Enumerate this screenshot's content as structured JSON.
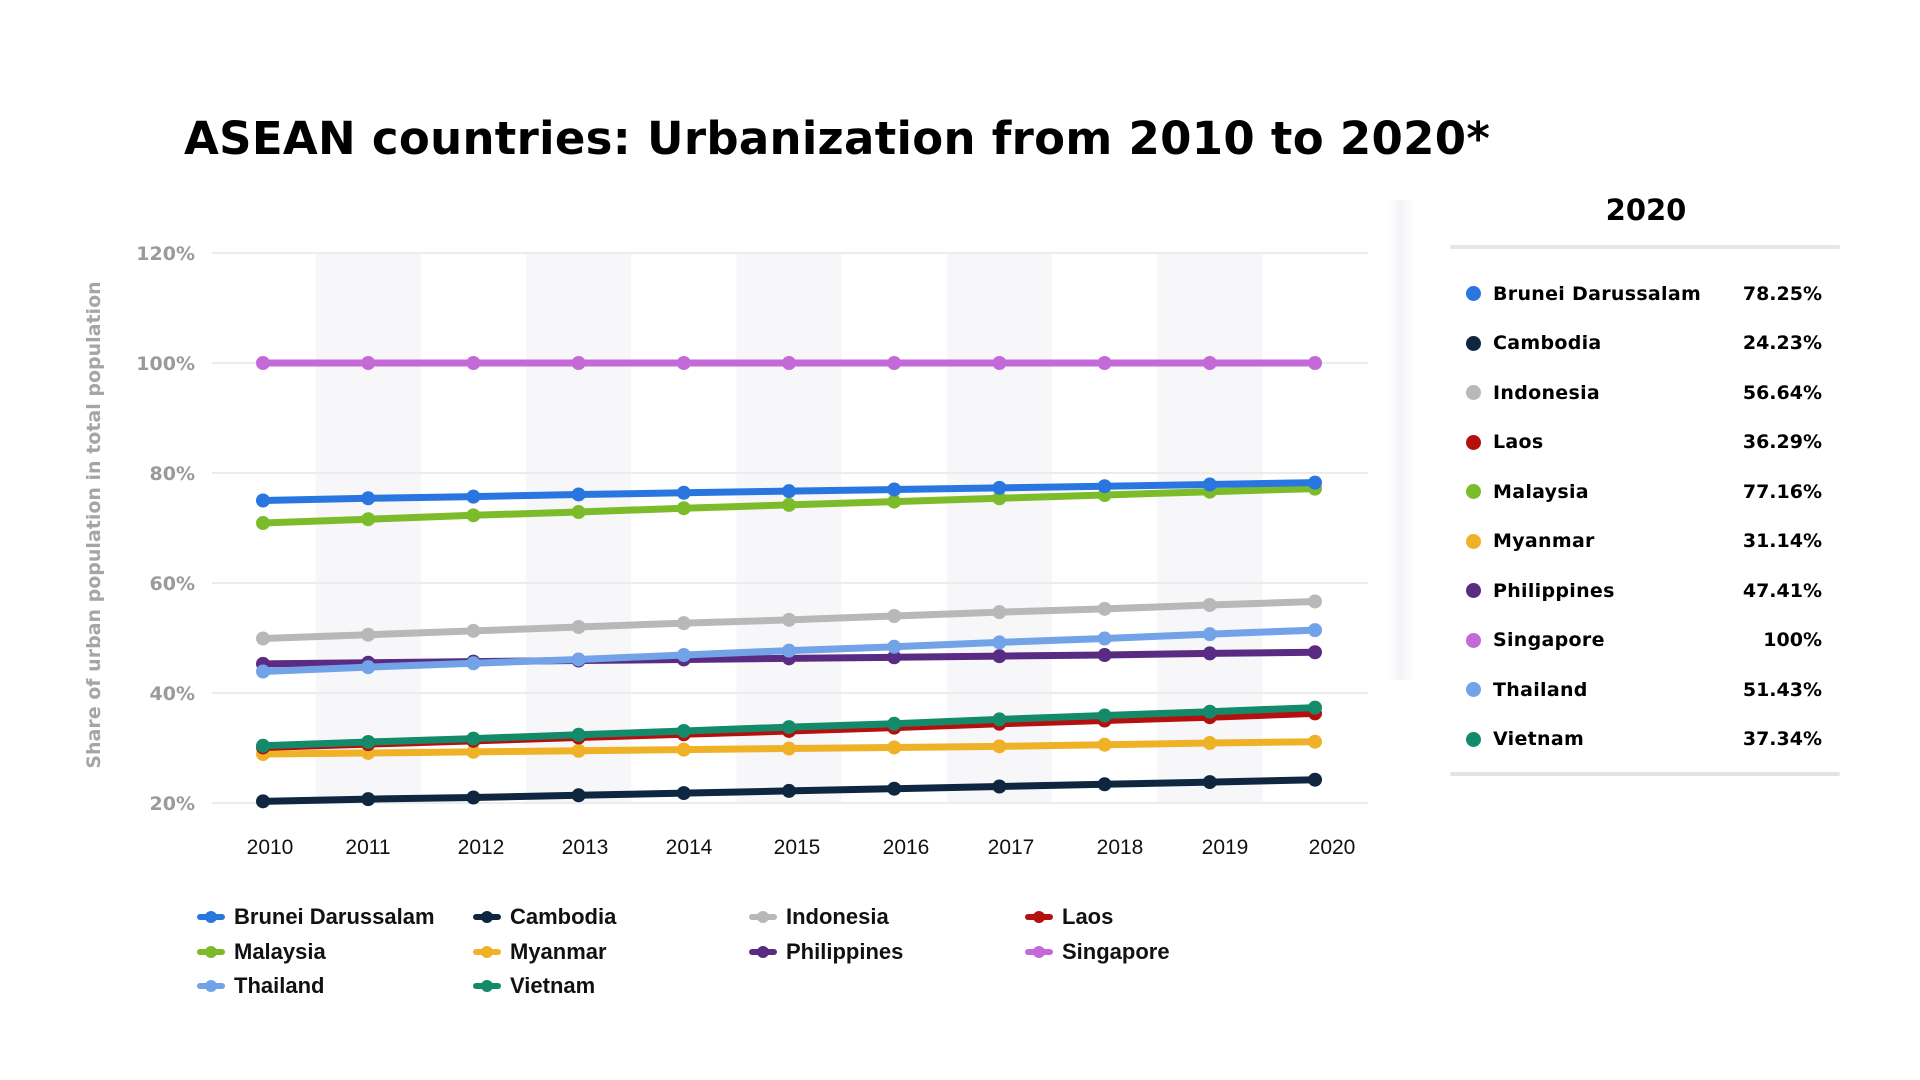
{
  "title": "ASEAN countries: Urbanization from 2010 to 2020*",
  "chart_data": {
    "type": "line",
    "title": "ASEAN countries: Urbanization from 2010 to 2020*",
    "xlabel": "",
    "ylabel": "Share of urban population in total population",
    "x": [
      "2010",
      "2011",
      "2012",
      "2013",
      "2014",
      "2015",
      "2016",
      "2017",
      "2018",
      "2019",
      "2020"
    ],
    "ylim": [
      20,
      120
    ],
    "yticks": [
      20,
      40,
      60,
      80,
      100,
      120
    ],
    "ytick_labels": [
      "20%",
      "40%",
      "60%",
      "80%",
      "100%",
      "120%"
    ],
    "grid": true,
    "legend_position": "bottom",
    "series": [
      {
        "name": "Brunei Darussalam",
        "color": "#2a76e0",
        "values": [
          75.0,
          75.4,
          75.7,
          76.1,
          76.4,
          76.7,
          77.0,
          77.3,
          77.6,
          77.9,
          78.25
        ]
      },
      {
        "name": "Cambodia",
        "color": "#0f2640",
        "values": [
          20.3,
          20.7,
          21.0,
          21.4,
          21.8,
          22.2,
          22.6,
          23.0,
          23.4,
          23.8,
          24.23
        ]
      },
      {
        "name": "Indonesia",
        "color": "#b8b8b8",
        "values": [
          49.9,
          50.6,
          51.3,
          52.0,
          52.7,
          53.3,
          54.0,
          54.7,
          55.3,
          56.0,
          56.64
        ]
      },
      {
        "name": "Laos",
        "color": "#b50f0f",
        "values": [
          30.1,
          30.7,
          31.3,
          31.9,
          32.5,
          33.1,
          33.7,
          34.4,
          35.0,
          35.6,
          36.29
        ]
      },
      {
        "name": "Malaysia",
        "color": "#7cbc2b",
        "values": [
          70.9,
          71.6,
          72.3,
          72.9,
          73.6,
          74.2,
          74.8,
          75.4,
          76.0,
          76.6,
          77.16
        ]
      },
      {
        "name": "Myanmar",
        "color": "#efb227",
        "values": [
          28.9,
          29.1,
          29.3,
          29.5,
          29.7,
          29.9,
          30.1,
          30.3,
          30.6,
          30.9,
          31.14
        ]
      },
      {
        "name": "Philippines",
        "color": "#5a2b82",
        "values": [
          45.3,
          45.5,
          45.7,
          45.9,
          46.1,
          46.3,
          46.5,
          46.7,
          46.9,
          47.2,
          47.41
        ]
      },
      {
        "name": "Singapore",
        "color": "#c46ad8",
        "values": [
          100,
          100,
          100,
          100,
          100,
          100,
          100,
          100,
          100,
          100,
          100
        ]
      },
      {
        "name": "Thailand",
        "color": "#72a2e8",
        "values": [
          43.9,
          44.7,
          45.4,
          46.1,
          46.9,
          47.7,
          48.4,
          49.2,
          49.9,
          50.7,
          51.43
        ]
      },
      {
        "name": "Vietnam",
        "color": "#138b6a",
        "values": [
          30.4,
          31.1,
          31.7,
          32.4,
          33.1,
          33.8,
          34.4,
          35.2,
          35.9,
          36.6,
          37.34
        ]
      }
    ],
    "legend_order": [
      "Brunei Darussalam",
      "Cambodia",
      "Indonesia",
      "Laos",
      "Malaysia",
      "Myanmar",
      "Philippines",
      "Singapore",
      "Thailand",
      "Vietnam"
    ]
  },
  "panel": {
    "title": "2020",
    "rows": [
      {
        "name": "Brunei Darussalam",
        "value": "78.25%",
        "color": "#2a76e0"
      },
      {
        "name": "Cambodia",
        "value": "24.23%",
        "color": "#0f2640"
      },
      {
        "name": "Indonesia",
        "value": "56.64%",
        "color": "#b8b8b8"
      },
      {
        "name": "Laos",
        "value": "36.29%",
        "color": "#b50f0f"
      },
      {
        "name": "Malaysia",
        "value": "77.16%",
        "color": "#7cbc2b"
      },
      {
        "name": "Myanmar",
        "value": "31.14%",
        "color": "#efb227"
      },
      {
        "name": "Philippines",
        "value": "47.41%",
        "color": "#5a2b82"
      },
      {
        "name": "Singapore",
        "value": "100%",
        "color": "#c46ad8"
      },
      {
        "name": "Thailand",
        "value": "51.43%",
        "color": "#72a2e8"
      },
      {
        "name": "Vietnam",
        "value": "37.34%",
        "color": "#138b6a"
      }
    ]
  }
}
